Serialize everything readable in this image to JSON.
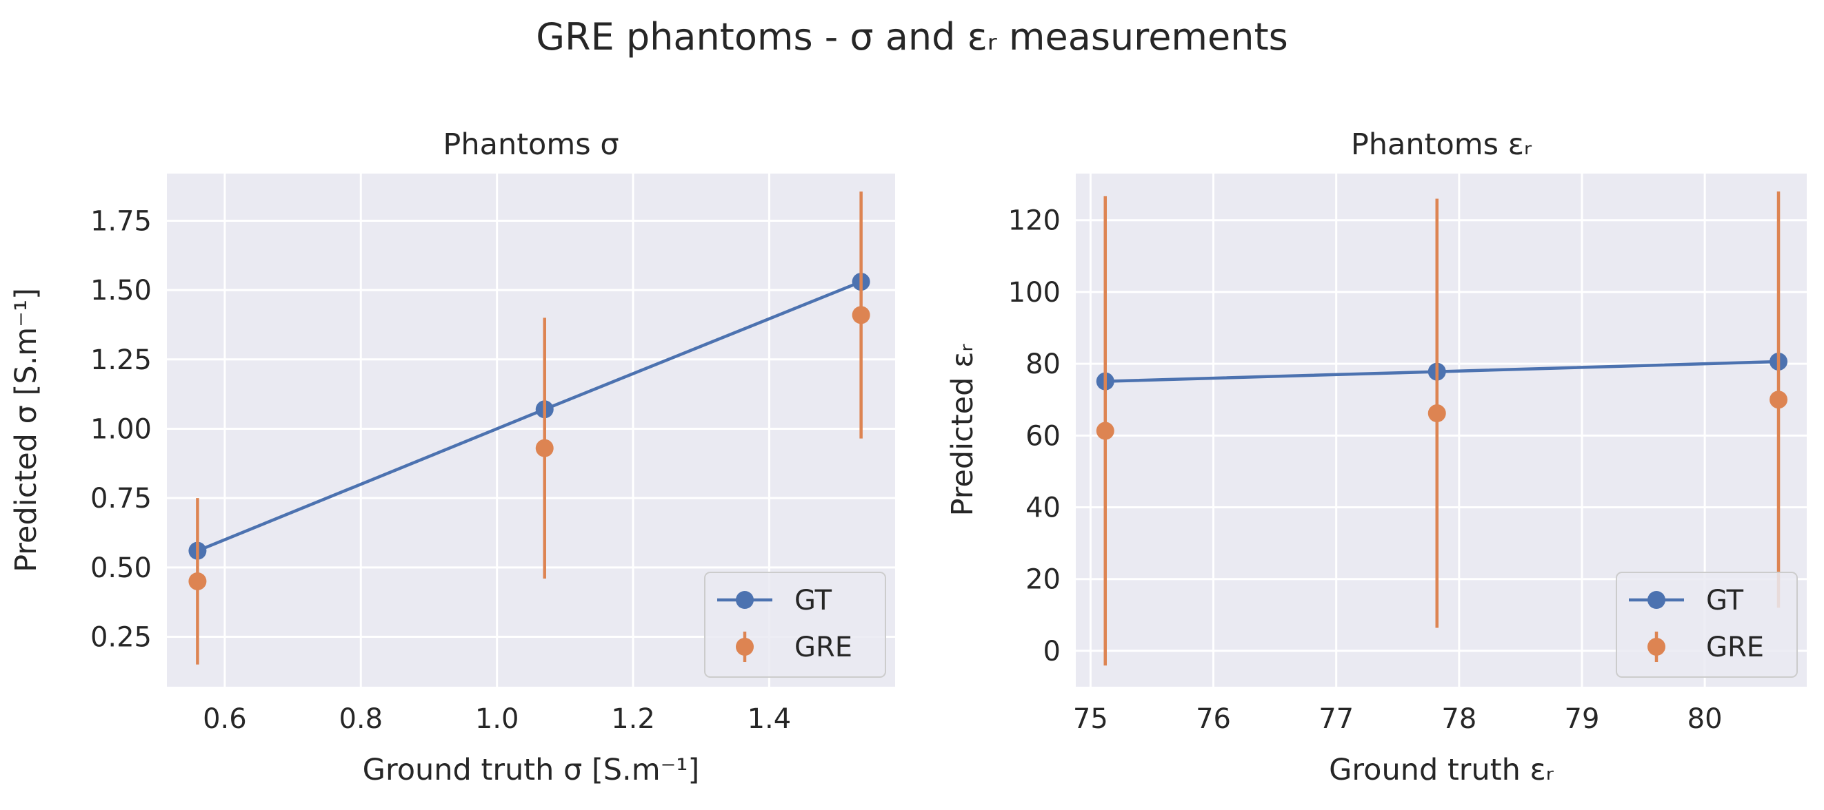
{
  "figure": {
    "suptitle": "GRE phantoms - σ and εᵣ measurements"
  },
  "chart_data": [
    {
      "type": "line",
      "title": "Phantoms σ",
      "xlabel": "Ground truth σ [S.m⁻¹]",
      "ylabel": "Predicted σ [S.m⁻¹]",
      "xlim": [
        0.515,
        1.585
      ],
      "ylim": [
        0.07,
        1.92
      ],
      "xticks": [
        0.6,
        0.8,
        1.0,
        1.2,
        1.4
      ],
      "xtick_labels": [
        "0.6",
        "0.8",
        "1.0",
        "1.2",
        "1.4"
      ],
      "yticks": [
        0.25,
        0.5,
        0.75,
        1.0,
        1.25,
        1.5,
        1.75
      ],
      "ytick_labels": [
        "0.25",
        "0.50",
        "0.75",
        "1.00",
        "1.25",
        "1.50",
        "1.75"
      ],
      "grid": true,
      "legend_position": "lower right",
      "series": [
        {
          "name": "GT",
          "kind": "line-marker",
          "color": "#4c72b0",
          "x": [
            0.56,
            1.07,
            1.535
          ],
          "y": [
            0.56,
            1.07,
            1.53
          ]
        },
        {
          "name": "GRE",
          "kind": "errorbar",
          "color": "#dd8452",
          "x": [
            0.56,
            1.07,
            1.535
          ],
          "y": [
            0.45,
            0.93,
            1.41
          ],
          "yerr": [
            0.3,
            0.47,
            0.445
          ]
        }
      ]
    },
    {
      "type": "line",
      "title": "Phantoms εᵣ",
      "xlabel": "Ground truth εᵣ",
      "ylabel": "Predicted εᵣ",
      "xlim": [
        74.88,
        80.83
      ],
      "ylim": [
        -10,
        133
      ],
      "xticks": [
        75,
        76,
        77,
        78,
        79,
        80
      ],
      "xtick_labels": [
        "75",
        "76",
        "77",
        "78",
        "79",
        "80"
      ],
      "yticks": [
        0,
        20,
        40,
        60,
        80,
        100,
        120
      ],
      "ytick_labels": [
        "0",
        "20",
        "40",
        "60",
        "80",
        "100",
        "120"
      ],
      "grid": true,
      "legend_position": "lower right",
      "series": [
        {
          "name": "GT",
          "kind": "line-marker",
          "color": "#4c72b0",
          "x": [
            75.12,
            77.82,
            80.6
          ],
          "y": [
            75.1,
            77.8,
            80.6
          ]
        },
        {
          "name": "GRE",
          "kind": "errorbar",
          "color": "#dd8452",
          "x": [
            75.12,
            77.82,
            80.6
          ],
          "y": [
            61.3,
            66.2,
            70.0
          ],
          "yerr": [
            65.4,
            59.8,
            58.0
          ]
        }
      ]
    }
  ]
}
